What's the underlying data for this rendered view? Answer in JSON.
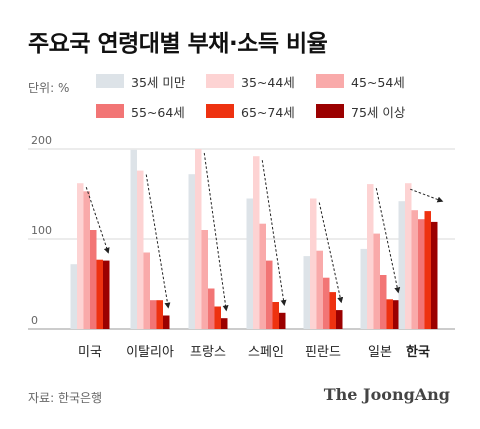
{
  "title": "주요국 연령대별 부채·소득 비율",
  "unit": "단위: %",
  "source": "자료: 한국은행",
  "brand": "The JoongAng",
  "chart_data": {
    "type": "bar",
    "categories": [
      "미국",
      "이탈리아",
      "프랑스",
      "스페인",
      "핀란드",
      "일본",
      "한국"
    ],
    "highlight_category": "한국",
    "ylim": [
      0,
      200
    ],
    "yticks": [
      0,
      100,
      200
    ],
    "grid": true,
    "legend_position": "top",
    "series": [
      {
        "name": "35세 미만",
        "color": "#dde3e8",
        "values": [
          72,
          199,
          172,
          145,
          81,
          89,
          142
        ]
      },
      {
        "name": "35~44세",
        "color": "#fdd3d3",
        "values": [
          162,
          176,
          200,
          192,
          145,
          161,
          162
        ]
      },
      {
        "name": "45~54세",
        "color": "#f9aaaa",
        "values": [
          153,
          85,
          110,
          117,
          87,
          106,
          132
        ]
      },
      {
        "name": "55~64세",
        "color": "#f27575",
        "values": [
          110,
          32,
          45,
          76,
          57,
          60,
          122
        ]
      },
      {
        "name": "65~74세",
        "color": "#ee3210",
        "values": [
          77,
          32,
          25,
          30,
          41,
          33,
          131
        ]
      },
      {
        "name": "75세 이상",
        "color": "#9b0000",
        "values": [
          76,
          15,
          12,
          18,
          21,
          32,
          119
        ]
      }
    ],
    "trend_arrows": "dashed arrow per country from 35~44 bar top to 75+ bar top"
  }
}
